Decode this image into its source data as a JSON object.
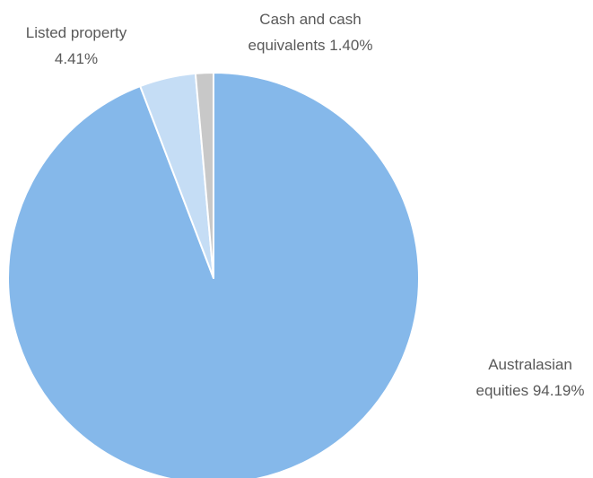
{
  "chart_data": {
    "type": "pie",
    "title": "",
    "slices": [
      {
        "name": "Australasian equities",
        "value": 94.19,
        "label_lines": [
          "Australasian",
          "equities 94.19%"
        ],
        "color": "#85b8ea"
      },
      {
        "name": "Listed property",
        "value": 4.41,
        "label_lines": [
          "Listed property",
          "4.41%"
        ],
        "color": "#c5ddf5"
      },
      {
        "name": "Cash and cash equivalents",
        "value": 1.4,
        "label_lines": [
          "Cash and cash",
          "equivalents 1.40%"
        ],
        "color": "#c8c8c8"
      }
    ],
    "start": "12 o'clock",
    "direction": "clockwise",
    "legend": "none",
    "slice_border_color": "#ffffff"
  }
}
